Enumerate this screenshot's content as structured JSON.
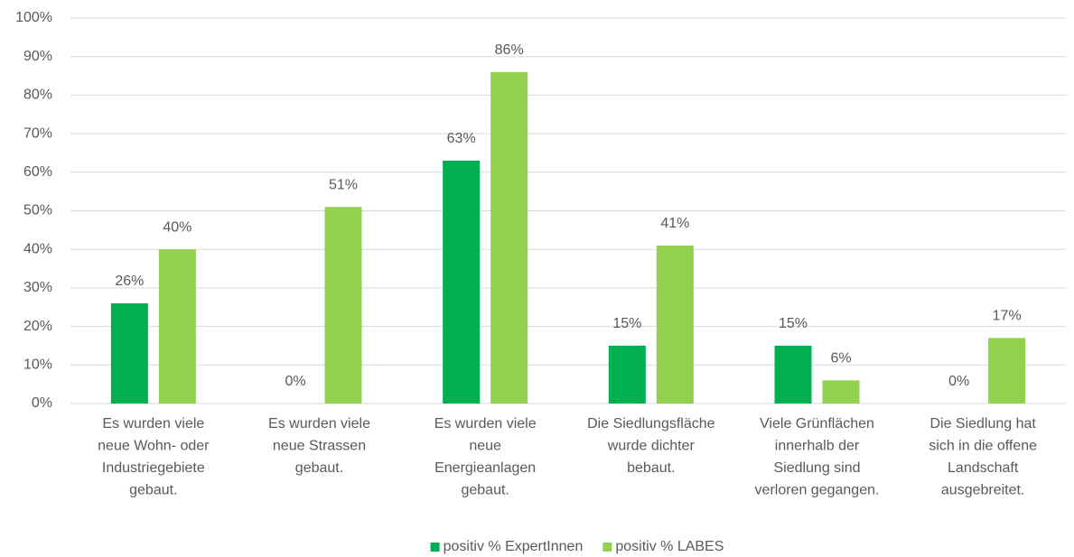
{
  "chart_data": {
    "type": "bar",
    "categories": [
      "Es wurden viele\nneue Wohn- oder\nIndustriegebiete\ngebaut.",
      "Es wurden viele\nneue Strassen\ngebaut.",
      "Es wurden viele\nneue\nEnergieanlagen\ngebaut.",
      "Die Siedlungsfläche\nwurde dichter\nbebaut.",
      "Viele Grünflächen\ninnerhalb der\nSiedlung sind\nverloren gegangen.",
      "Die Siedlung hat\nsich in die offene\nLandschaft\nausgebreitet."
    ],
    "series": [
      {
        "name": "positiv % ExpertInnen",
        "color": "#00b050",
        "values": [
          26,
          0,
          63,
          15,
          15,
          0
        ],
        "value_labels": [
          "26%",
          "0%",
          "63%",
          "15%",
          "15%",
          "0%"
        ]
      },
      {
        "name": "positiv % LABES",
        "color": "#92d050",
        "values": [
          40,
          51,
          86,
          41,
          6,
          17
        ],
        "value_labels": [
          "40%",
          "51%",
          "86%",
          "41%",
          "6%",
          "17%"
        ]
      }
    ],
    "ylim": [
      0,
      100
    ],
    "yticks": [
      {
        "value": 0,
        "label": "0%"
      },
      {
        "value": 10,
        "label": "10%"
      },
      {
        "value": 20,
        "label": "20%"
      },
      {
        "value": 30,
        "label": "30%"
      },
      {
        "value": 40,
        "label": "40%"
      },
      {
        "value": 50,
        "label": "50%"
      },
      {
        "value": 60,
        "label": "60%"
      },
      {
        "value": 70,
        "label": "70%"
      },
      {
        "value": 80,
        "label": "80%"
      },
      {
        "value": 90,
        "label": "90%"
      },
      {
        "value": 100,
        "label": "100%"
      }
    ],
    "grid": true,
    "legend": "bottom"
  }
}
